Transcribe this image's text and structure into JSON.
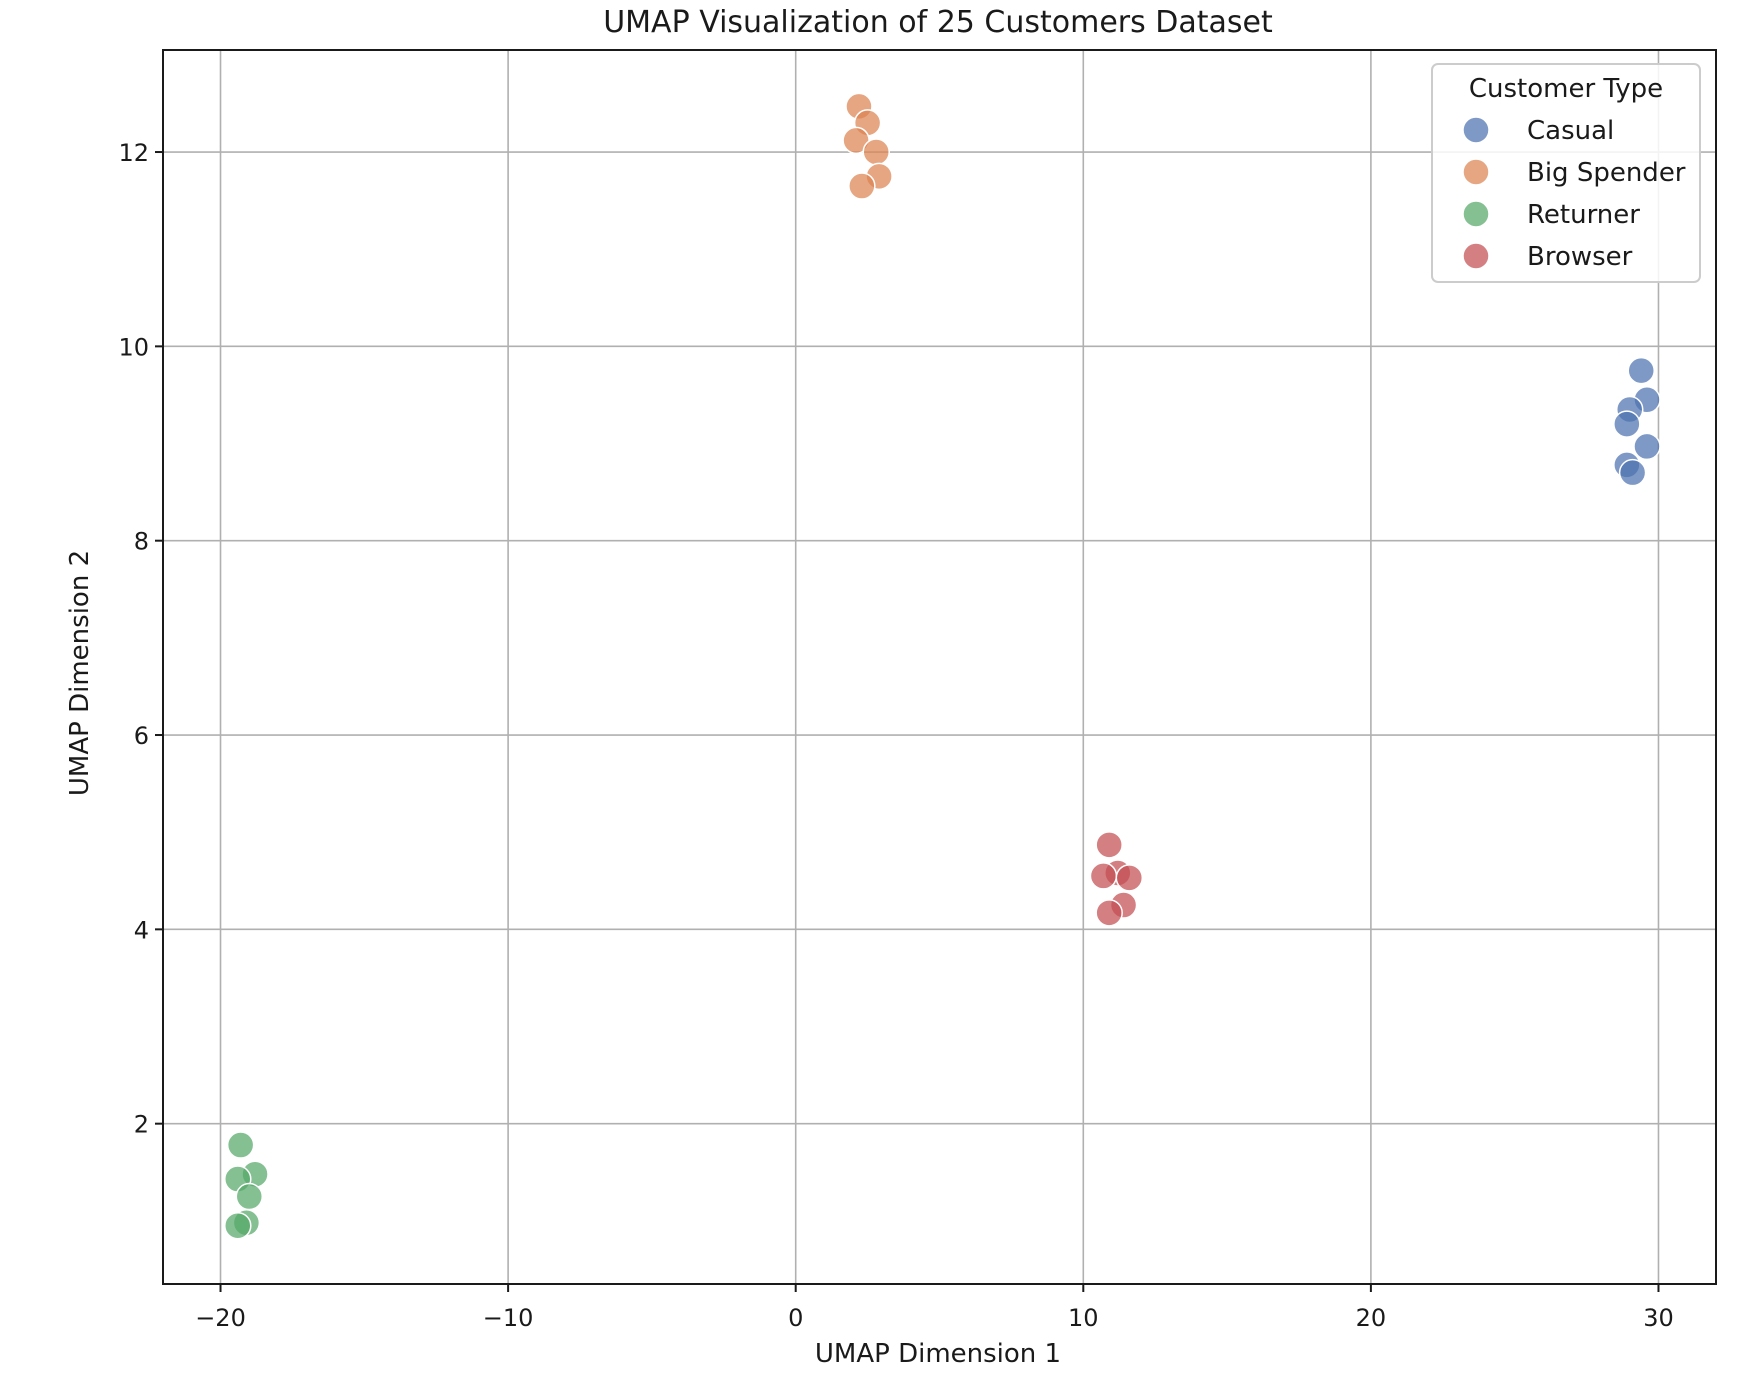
{
  "chart_data": {
    "type": "scatter",
    "title": "UMAP Visualization of 25 Customers Dataset",
    "xlabel": "UMAP Dimension 1",
    "ylabel": "UMAP Dimension 2",
    "xlim": [
      -22,
      32
    ],
    "ylim": [
      0.35,
      13.05
    ],
    "xticks": [
      -20,
      -10,
      0,
      10,
      20,
      30
    ],
    "xtick_labels": [
      "−20",
      "−10",
      "0",
      "10",
      "20",
      "30"
    ],
    "yticks": [
      2,
      4,
      6,
      8,
      10,
      12
    ],
    "ytick_labels": [
      "2",
      "4",
      "6",
      "8",
      "10",
      "12"
    ],
    "grid": true,
    "legend": {
      "title": "Customer Type",
      "placement": "top-right"
    },
    "series": [
      {
        "name": "Casual",
        "color": "#4c72b0",
        "points": [
          [
            29.4,
            9.75
          ],
          [
            29.6,
            9.45
          ],
          [
            29.0,
            9.35
          ],
          [
            28.9,
            9.2
          ],
          [
            29.6,
            8.97
          ],
          [
            28.9,
            8.78
          ],
          [
            29.1,
            8.7
          ]
        ]
      },
      {
        "name": "Big Spender",
        "color": "#dd8452",
        "points": [
          [
            2.2,
            12.47
          ],
          [
            2.5,
            12.3
          ],
          [
            2.1,
            12.12
          ],
          [
            2.8,
            12.0
          ],
          [
            2.9,
            11.75
          ],
          [
            2.3,
            11.65
          ]
        ]
      },
      {
        "name": "Returner",
        "color": "#55a868",
        "points": [
          [
            -19.3,
            1.78
          ],
          [
            -18.8,
            1.48
          ],
          [
            -19.4,
            1.43
          ],
          [
            -19.0,
            1.25
          ],
          [
            -19.1,
            0.98
          ],
          [
            -19.4,
            0.95
          ]
        ]
      },
      {
        "name": "Browser",
        "color": "#c44e52",
        "points": [
          [
            10.9,
            4.87
          ],
          [
            11.2,
            4.58
          ],
          [
            10.7,
            4.55
          ],
          [
            11.6,
            4.53
          ],
          [
            11.4,
            4.25
          ],
          [
            10.9,
            4.17
          ]
        ]
      }
    ]
  }
}
